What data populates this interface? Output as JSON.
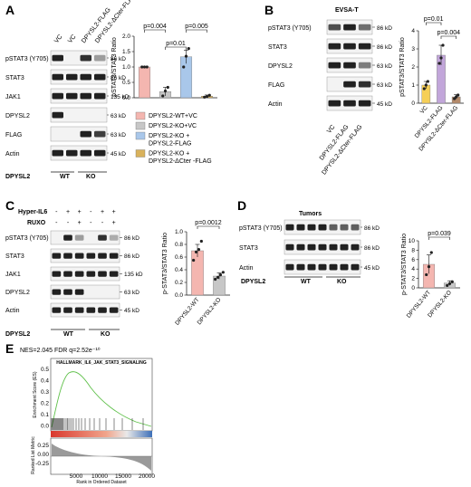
{
  "figure": {
    "panels": {
      "A": {
        "letter": "A",
        "lane_labels": [
          "VC",
          "VC",
          "DPYSL2-FLAG",
          "DPYSL2-ΔCter-FLAG"
        ],
        "blots": [
          "pSTAT3 (Y705)",
          "STAT3",
          "JAK1",
          "DPYSL2",
          "FLAG",
          "Actin"
        ],
        "kd": [
          "86 kD",
          "86 kD",
          "135 kD",
          "63 kD",
          "63 kD",
          "45 kD"
        ],
        "genotype_label": "DPYSL2",
        "wt": "WT",
        "ko": "KO"
      },
      "B": {
        "letter": "B",
        "cell_line": "EVSA-T",
        "blots": [
          "pSTAT3 (Y705)",
          "STAT3",
          "DPYSL2",
          "FLAG",
          "Actin"
        ],
        "kd": [
          "86 kD",
          "86 kD",
          "63 kD",
          "63 kD",
          "45 kD"
        ],
        "lane_labels": [
          "VC",
          "DPYSL2-FLAG",
          "DPYSL2-ΔCter-FLAG"
        ]
      },
      "C": {
        "letter": "C",
        "treat1": "Hyper-IL6",
        "treat2": "RUXO",
        "treat1_signs": [
          "-",
          "+",
          "+",
          "-",
          "+",
          "+"
        ],
        "treat2_signs": [
          "-",
          "-",
          "+",
          "-",
          "-",
          "+"
        ],
        "blots": [
          "pSTAT3 (Y705)",
          "STAT3",
          "JAK1",
          "DPYSL2",
          "Actin"
        ],
        "kd": [
          "86 kD",
          "86 kD",
          "135 kD",
          "63 kD",
          "45 kD"
        ],
        "genotype_label": "DPYSL2",
        "wt": "WT",
        "ko": "KO"
      },
      "D": {
        "letter": "D",
        "title": "Tumors",
        "blots": [
          "pSTAT3 (Y705)",
          "STAT3",
          "Actin"
        ],
        "kd": [
          "86 kD",
          "86 kD",
          "45 kD"
        ],
        "genotype_label": "DPYSL2",
        "wt": "WT",
        "ko": "KO"
      },
      "E": {
        "letter": "E",
        "stats": "NES=2.045  FDR q=2.52e⁻¹⁰",
        "title": "HALLMARK_IL6_JAK_STAT3_SIGNALING",
        "ylabel_top": "Enrichment Score (ES)",
        "ylabel_bottom": "Ranked List Metric",
        "xlabel": "Rank in Ordered Dataset",
        "es_ticks": [
          "0.5",
          "0.4",
          "0.3",
          "0.2",
          "0.1",
          "0.0"
        ],
        "metric_ticks": [
          "0.25",
          "0.00",
          "-0.25"
        ],
        "x_ticks": [
          "5000",
          "10000",
          "15000",
          "20000"
        ]
      }
    }
  },
  "chart_data": [
    {
      "id": "A",
      "type": "bar",
      "ylabel": "pSTAT3/STAT3 Ratio",
      "ylim": [
        0,
        2
      ],
      "yticks": [
        "0.0",
        "0.5",
        "1.0",
        "1.5",
        "2.0"
      ],
      "categories": [
        "DPYSL2-WT+VC",
        "DPYSL2-KO+VC",
        "DPYSL2-KO + DPYSL2-FLAG",
        "DPYSL2-KO + DPYSL2-ΔCter -FLAG"
      ],
      "values": [
        1.0,
        0.2,
        1.33,
        0.05
      ],
      "errors": [
        0.0,
        0.14,
        0.22,
        0.04
      ],
      "points": [
        [
          1.0,
          1.0,
          1.0
        ],
        [
          0.06,
          0.22,
          0.34
        ],
        [
          1.0,
          1.35,
          1.6
        ],
        [
          0.02,
          0.04,
          0.08
        ]
      ],
      "colors": [
        "#f4b6b0",
        "#c7c7c7",
        "#a9c7ea",
        "#d9b25c"
      ],
      "legend": [
        "DPYSL2-WT+VC",
        "DPYSL2-KO+VC",
        "DPYSL2-KO + DPYSL2-FLAG",
        "DPYSL2-KO + DPYSL2-ΔCter -FLAG"
      ],
      "brackets": [
        {
          "from": 0,
          "to": 1,
          "label": "p=0.004"
        },
        {
          "from": 2,
          "to": 3,
          "label": "p=0.005"
        },
        {
          "from": 1,
          "to": 2,
          "label": "p=0.01"
        }
      ]
    },
    {
      "id": "B",
      "type": "bar",
      "ylabel": "pSTAT3/STAT3 Ratio",
      "ylim": [
        0,
        4
      ],
      "yticks": [
        "0",
        "1",
        "2",
        "3",
        "4"
      ],
      "categories": [
        "VC",
        "DPYSL2-FLAG",
        "DPYSL2-ΔCter-FLAG"
      ],
      "values": [
        1.0,
        2.65,
        0.35
      ],
      "errors": [
        0.2,
        0.55,
        0.12
      ],
      "points": [
        [
          0.8,
          1.0,
          1.2
        ],
        [
          2.2,
          2.5,
          3.2
        ],
        [
          0.25,
          0.35,
          0.45
        ]
      ],
      "colors": [
        "#f6cf57",
        "#c2a6da",
        "#b48a6a"
      ],
      "brackets": [
        {
          "from": 0,
          "to": 1,
          "label": "p=0.01"
        },
        {
          "from": 1,
          "to": 2,
          "label": "p=0.004"
        }
      ]
    },
    {
      "id": "C",
      "type": "bar",
      "ylabel": "p-STAT3/STAT3 Ratio",
      "ylim": [
        0,
        1.0
      ],
      "yticks": [
        "0.0",
        "0.2",
        "0.4",
        "0.6",
        "0.8",
        "1.0"
      ],
      "categories": [
        "DPYSL2-WT",
        "DPYSL2-KO"
      ],
      "values": [
        0.7,
        0.3
      ],
      "errors": [
        0.1,
        0.05
      ],
      "points": [
        [
          0.55,
          0.68,
          0.72,
          0.85
        ],
        [
          0.25,
          0.28,
          0.32,
          0.36
        ]
      ],
      "colors": [
        "#f4b6b0",
        "#c7c7c7"
      ],
      "brackets": [
        {
          "from": 0,
          "to": 1,
          "label": "p=0.0012"
        }
      ]
    },
    {
      "id": "D",
      "type": "bar",
      "ylabel": "p-STAT3/STAT3 Ratio",
      "ylim": [
        0,
        10
      ],
      "yticks": [
        "0",
        "2",
        "4",
        "6",
        "8",
        "10"
      ],
      "categories": [
        "DPYSL2-WT",
        "DPYSL2-KO"
      ],
      "values": [
        5.0,
        1.0
      ],
      "errors": [
        2.0,
        0.5
      ],
      "points": [
        [
          2.8,
          4.5,
          7.5
        ],
        [
          0.5,
          0.9,
          1.3
        ]
      ],
      "colors": [
        "#f4b6b0",
        "#c7c7c7"
      ],
      "brackets": [
        {
          "from": 0,
          "to": 1,
          "label": "p=0.039"
        }
      ]
    }
  ]
}
